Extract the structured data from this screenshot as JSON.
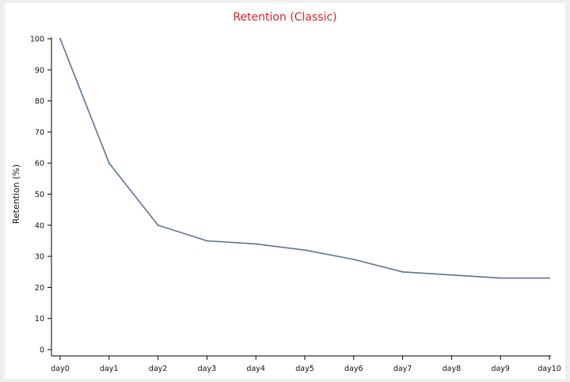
{
  "chart_data": {
    "type": "line",
    "title": "Retention (Classic)",
    "xlabel": "",
    "ylabel": "Retention (%)",
    "categories": [
      "day0",
      "day1",
      "day2",
      "day3",
      "day4",
      "day5",
      "day6",
      "day7",
      "day8",
      "day9",
      "day10"
    ],
    "series": [
      {
        "values": [
          100,
          60,
          40,
          35,
          34,
          32,
          29,
          25,
          24,
          23,
          23
        ]
      }
    ],
    "ylim": [
      0,
      100
    ],
    "yticks": [
      0,
      10,
      20,
      30,
      40,
      50,
      60,
      70,
      80,
      90,
      100
    ],
    "grid": false,
    "line_color": "#5f7390",
    "title_color": "#d8242c"
  }
}
